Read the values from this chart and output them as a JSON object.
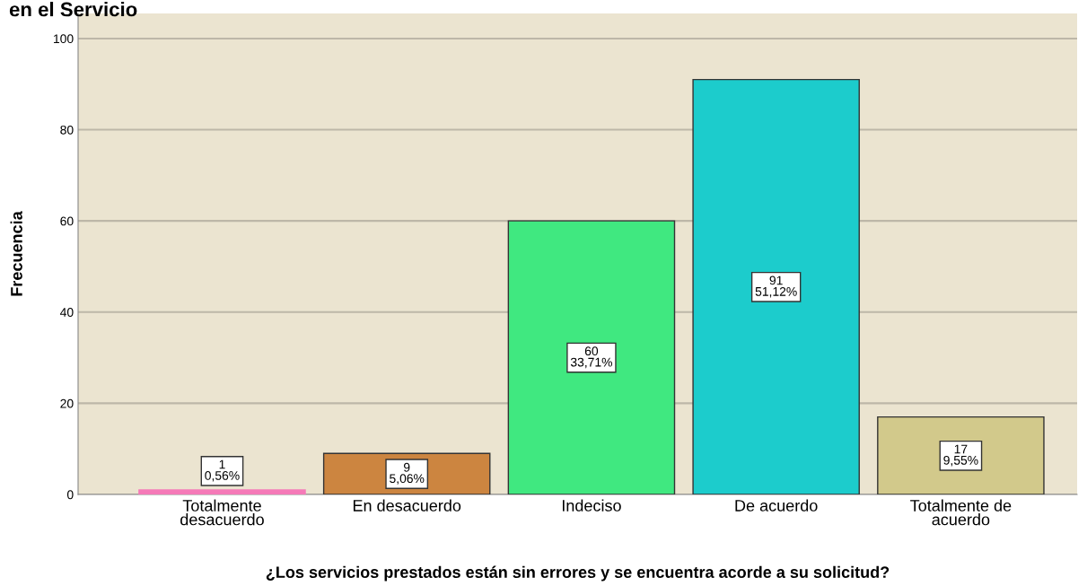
{
  "chart_data": {
    "type": "bar",
    "title": "en el Servicio",
    "xlabel": "¿Los servicios prestados están sin errores y se encuentra acorde a su solicitud?",
    "ylabel": "Frecuencia",
    "categories": [
      "Totalmente\ndesacuerdo",
      "En desacuerdo",
      "Indeciso",
      "De acuerdo",
      "Totalmente de\nacuerdo"
    ],
    "values": [
      1,
      9,
      60,
      91,
      17
    ],
    "value_labels": [
      "1\n0,56%",
      "9\n5,06%",
      "60\n33,71%",
      "91\n51,12%",
      "17\n9,55%"
    ],
    "colors": [
      "#f57ab8",
      "#cc8540",
      "#40e880",
      "#1ccccc",
      "#d2c98b"
    ],
    "ylim": [
      0,
      105.5
    ],
    "yticks": [
      0,
      20,
      40,
      60,
      80,
      100
    ],
    "grid": "y"
  }
}
